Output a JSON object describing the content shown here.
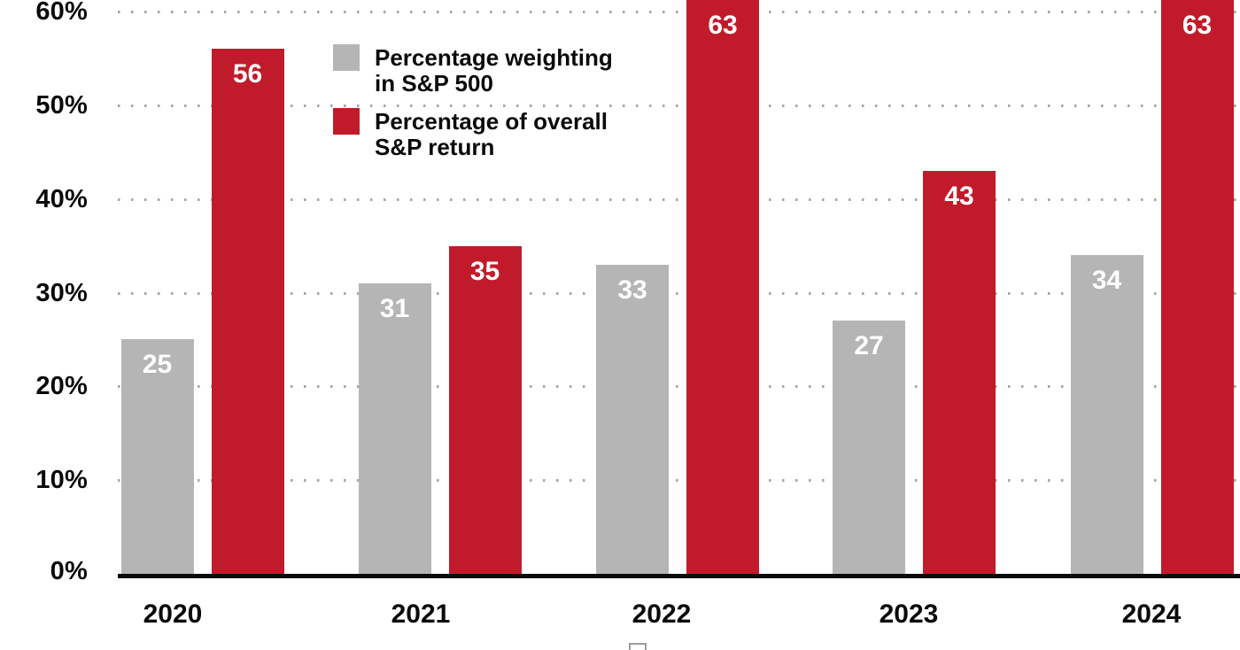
{
  "chart_data": {
    "type": "bar",
    "title": "",
    "categories": [
      "2020",
      "2021",
      "2022",
      "2023",
      "2024"
    ],
    "series": [
      {
        "name": "Percentage weighting in S&P 500",
        "legend_label": "Percentage weighting\nin S&P 500",
        "color": "#b5b5b5",
        "values": [
          25,
          31,
          33,
          27,
          34
        ]
      },
      {
        "name": "Percentage of overall S&P return",
        "legend_label": "Percentage of overall\nS&P return",
        "color": "#c11b2b",
        "values": [
          56,
          35,
          63,
          43,
          63
        ]
      }
    ],
    "y_axis": {
      "min": 0,
      "max": 60,
      "step": 10,
      "tick_labels": [
        "0%",
        "10%",
        "20%",
        "30%",
        "40%",
        "50%",
        "60%"
      ],
      "unit": "%",
      "gridline_style": "dotted"
    },
    "x_axis": {
      "tick_labels": [
        "2020",
        "2021",
        "2022",
        "2023",
        "2024"
      ]
    },
    "value_labels": {
      "position": "inside-top",
      "color": "#ffffff"
    },
    "legend_position": "top-left-inside",
    "colors": {
      "bar_gray": "#b5b5b5",
      "bar_red": "#c11b2b",
      "axis_line": "#0a0a0a",
      "gridline_dots": "#a6a6a6",
      "text": "#0a0a0a",
      "background": "#ffffff"
    }
  }
}
